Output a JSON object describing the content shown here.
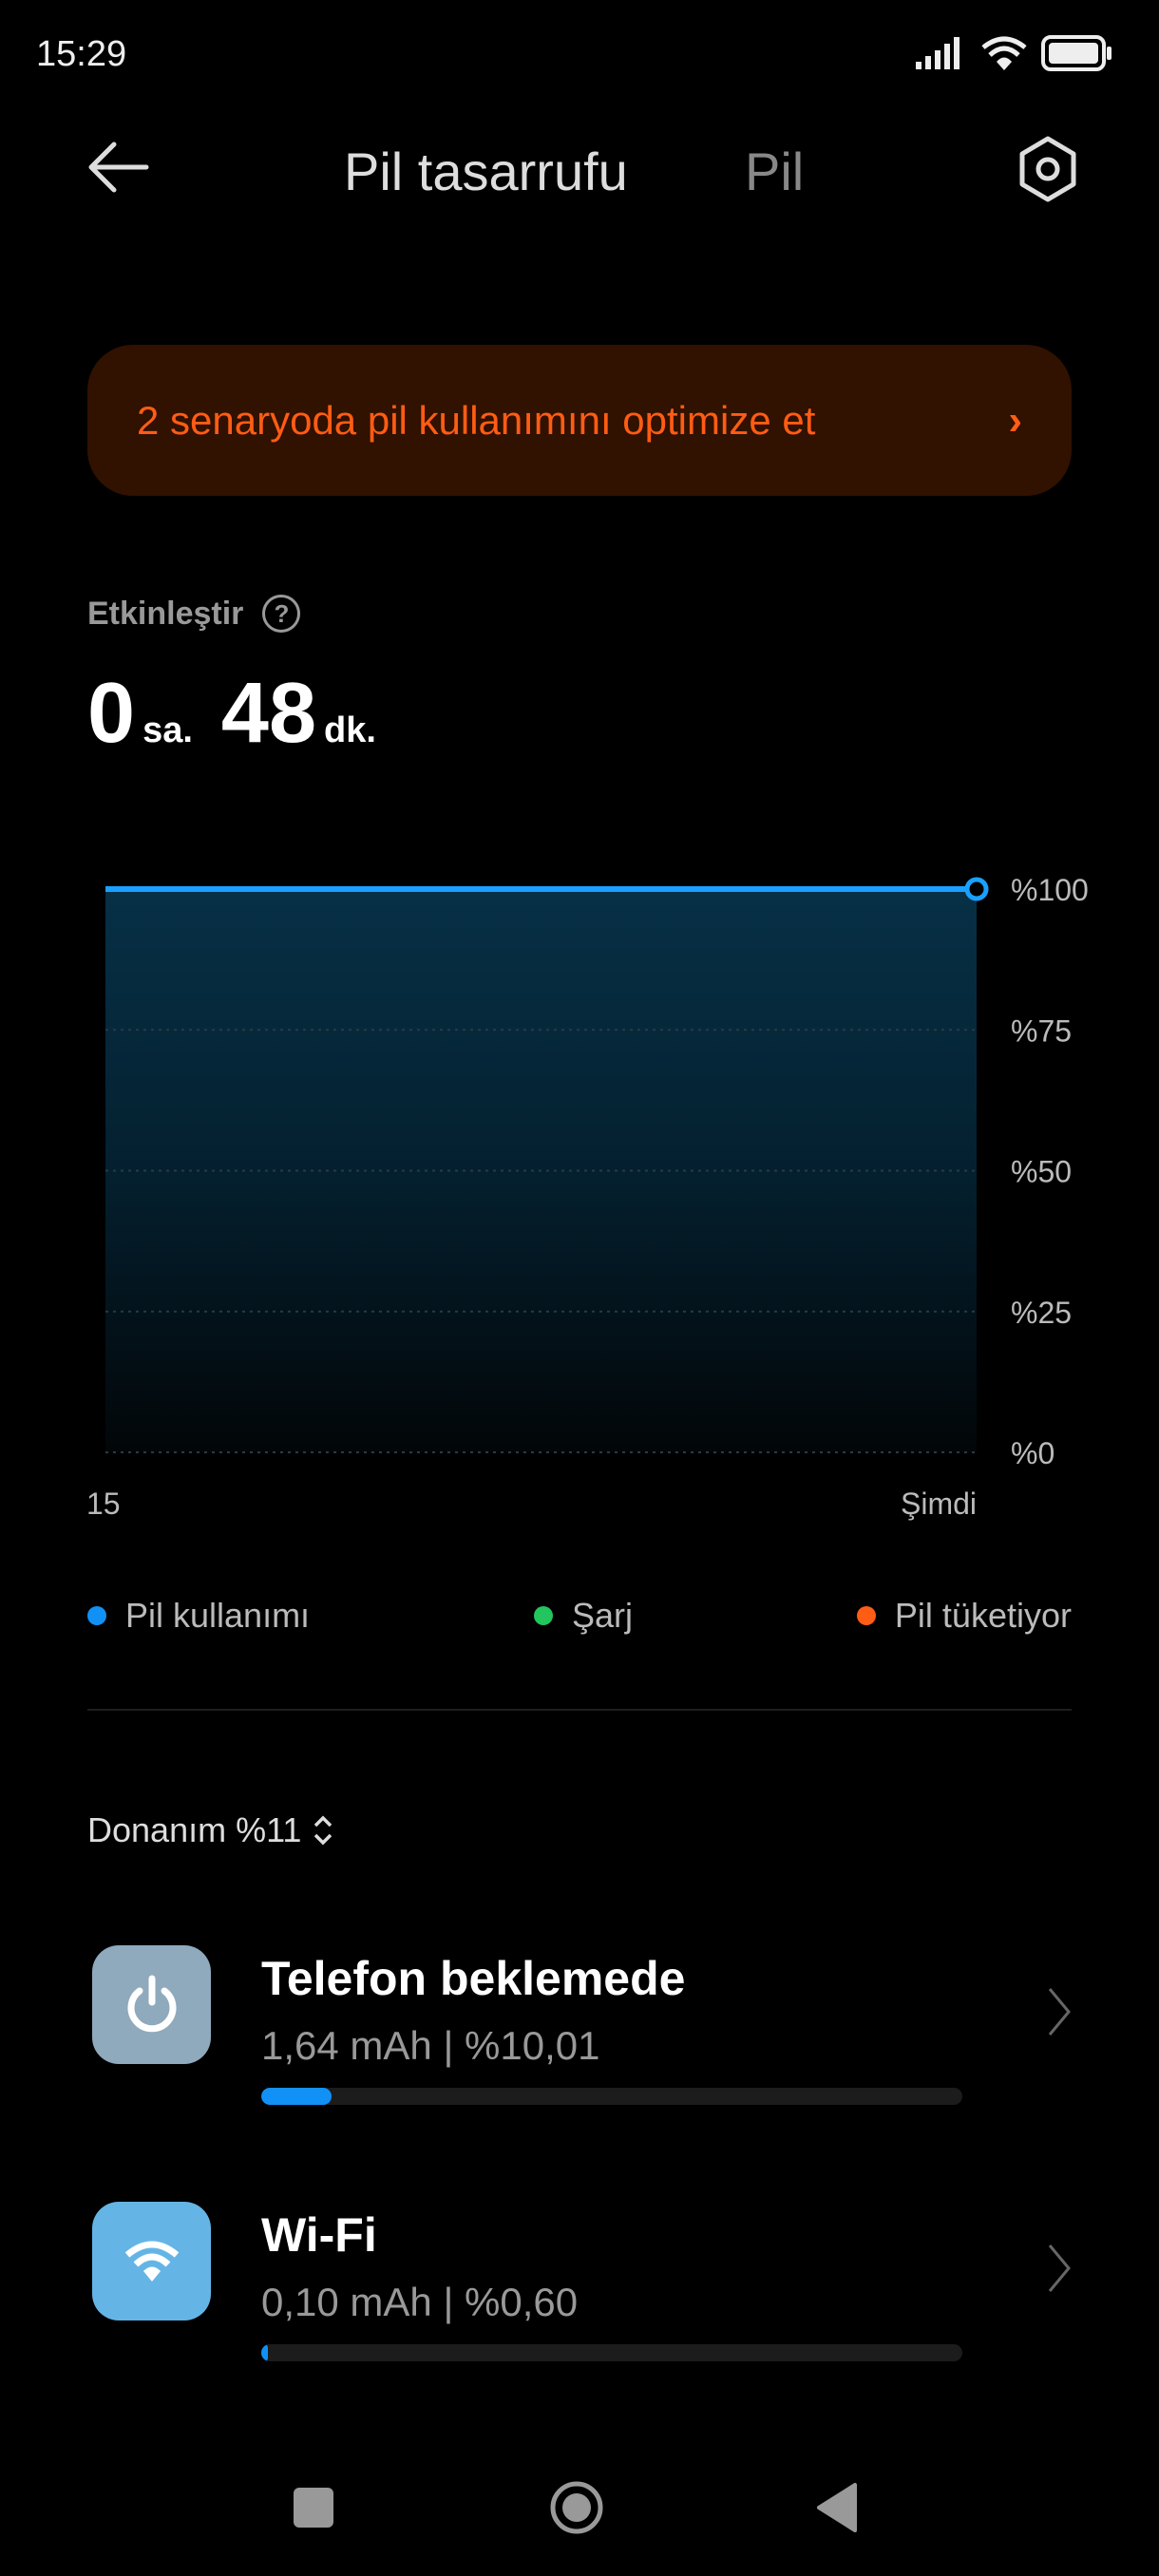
{
  "status_bar": {
    "time": "15:29",
    "icons": [
      "signal-icon",
      "wifi-icon",
      "battery-icon"
    ]
  },
  "header": {
    "back_icon": "arrow-left-icon",
    "title": "Pil tasarrufu",
    "secondary_tab": "Pil",
    "settings_icon": "gear-icon"
  },
  "banner": {
    "text": "2 senaryoda pil kullanımını optimize et",
    "chevron": "›",
    "color": "#ff5c14"
  },
  "estimate": {
    "label": "Etkinleştir",
    "help": "?",
    "hours": "0",
    "hours_unit": "sa.",
    "minutes": "48",
    "minutes_unit": "dk."
  },
  "chart_data": {
    "type": "area",
    "x_labels": [
      "15",
      "Şimdi"
    ],
    "y_ticks": [
      "%100",
      "%75",
      "%50",
      "%25",
      "%0"
    ],
    "ylim": [
      0,
      100
    ],
    "series": [
      {
        "name": "Pil kullanımı",
        "values": [
          100,
          100
        ],
        "color": "#1aa0ff"
      }
    ],
    "grid": true
  },
  "legend": [
    {
      "label": "Pil kullanımı",
      "color": "#1191f6"
    },
    {
      "label": "Şarj",
      "color": "#22c55e"
    },
    {
      "label": "Pil tüketiyor",
      "color": "#ff5c14"
    }
  ],
  "hardware": {
    "label": "Donanım %11",
    "icon": "sort-icon"
  },
  "items": [
    {
      "title": "Telefon beklemede",
      "subtitle": "1,64 mAh | %10,01",
      "percent": 10.01,
      "icon": "power-icon",
      "icon_bg": "#8fa9bd"
    },
    {
      "title": "Wi-Fi",
      "subtitle": "0,10 mAh | %0,60",
      "percent": 0.6,
      "icon": "wifi-icon",
      "icon_bg": "#64b5e6"
    }
  ],
  "nav": [
    "recents-button",
    "home-button",
    "back-button"
  ]
}
